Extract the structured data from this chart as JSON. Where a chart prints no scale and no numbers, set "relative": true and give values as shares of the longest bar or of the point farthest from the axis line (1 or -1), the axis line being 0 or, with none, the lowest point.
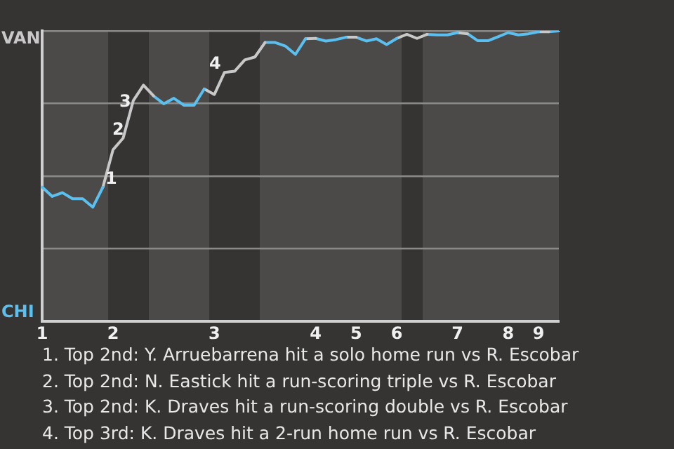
{
  "chart_data": {
    "type": "line",
    "relative": true,
    "categories": [
      "1",
      null,
      null,
      null,
      null,
      null,
      null,
      "2",
      null,
      null,
      null,
      null,
      null,
      null,
      null,
      null,
      null,
      "3",
      null,
      null,
      null,
      null,
      null,
      null,
      null,
      null,
      null,
      "4",
      null,
      null,
      null,
      "5",
      null,
      null,
      null,
      "6",
      null,
      null,
      null,
      null,
      null,
      "7",
      null,
      null,
      null,
      null,
      "8",
      null,
      null,
      "9",
      null,
      null
    ],
    "series": [
      {
        "color": "#5bc0f0",
        "values": [
          0.462,
          0.43,
          0.443,
          0.422,
          0.422,
          0.393,
          0.462,
          null,
          null,
          null,
          null,
          null,
          null,
          null,
          null,
          null,
          null,
          null,
          null,
          null,
          null,
          null,
          null,
          null,
          null,
          null,
          null,
          null,
          null,
          null,
          null,
          null,
          null,
          null,
          null,
          null,
          null,
          null,
          null,
          null,
          null,
          null,
          null,
          null,
          null,
          null,
          null,
          null,
          null,
          null,
          null,
          null
        ]
      },
      {
        "color": "#c8c8c8",
        "values": [
          null,
          null,
          null,
          null,
          null,
          null,
          0.462,
          0.591,
          0.631,
          0.76,
          0.813,
          0.776,
          null,
          null,
          null,
          null,
          null,
          null,
          null,
          null,
          null,
          null,
          null,
          null,
          null,
          null,
          null,
          null,
          null,
          null,
          null,
          null,
          null,
          null,
          null,
          null,
          null,
          null,
          null,
          null,
          null,
          null,
          null,
          null,
          null,
          null,
          null,
          null,
          null,
          null,
          null,
          null
        ]
      },
      {
        "color": "#5bc0f0",
        "values": [
          null,
          null,
          null,
          null,
          null,
          null,
          null,
          null,
          null,
          null,
          null,
          0.776,
          0.749,
          0.768,
          0.744,
          0.744,
          0.8,
          null,
          null,
          null,
          null,
          null,
          null,
          null,
          null,
          null,
          null,
          null,
          null,
          null,
          null,
          null,
          null,
          null,
          null,
          null,
          null,
          null,
          null,
          null,
          null,
          null,
          null,
          null,
          null,
          null,
          null,
          null,
          null,
          null,
          null,
          null
        ]
      },
      {
        "color": "#c8c8c8",
        "values": [
          null,
          null,
          null,
          null,
          null,
          null,
          null,
          null,
          null,
          null,
          null,
          null,
          null,
          null,
          null,
          null,
          0.8,
          0.781,
          0.857,
          0.861,
          0.9,
          0.91,
          0.96,
          null,
          null,
          null,
          null,
          null,
          null,
          null,
          null,
          null,
          null,
          null,
          null,
          null,
          null,
          null,
          null,
          null,
          null,
          null,
          null,
          null,
          null,
          null,
          null,
          null,
          null,
          null,
          null,
          null
        ]
      },
      {
        "color": "#5bc0f0",
        "values": [
          null,
          null,
          null,
          null,
          null,
          null,
          null,
          null,
          null,
          null,
          null,
          null,
          null,
          null,
          null,
          null,
          null,
          null,
          null,
          null,
          null,
          null,
          0.96,
          0.96,
          0.948,
          0.919,
          0.973,
          null,
          null,
          null,
          null,
          null,
          null,
          null,
          null,
          null,
          null,
          null,
          null,
          null,
          null,
          null,
          null,
          null,
          null,
          null,
          null,
          null,
          null,
          null,
          null,
          null
        ]
      },
      {
        "color": "#c8c8c8",
        "values": [
          null,
          null,
          null,
          null,
          null,
          null,
          null,
          null,
          null,
          null,
          null,
          null,
          null,
          null,
          null,
          null,
          null,
          null,
          null,
          null,
          null,
          null,
          null,
          null,
          null,
          null,
          0.973,
          0.974,
          null,
          null,
          null,
          null,
          null,
          null,
          null,
          null,
          null,
          null,
          null,
          null,
          null,
          null,
          null,
          null,
          null,
          null,
          null,
          null,
          null,
          null,
          null,
          null
        ]
      },
      {
        "color": "#5bc0f0",
        "values": [
          null,
          null,
          null,
          null,
          null,
          null,
          null,
          null,
          null,
          null,
          null,
          null,
          null,
          null,
          null,
          null,
          null,
          null,
          null,
          null,
          null,
          null,
          null,
          null,
          null,
          null,
          null,
          0.974,
          0.965,
          0.97,
          0.978,
          null,
          null,
          null,
          null,
          null,
          null,
          null,
          null,
          null,
          null,
          null,
          null,
          null,
          null,
          null,
          null,
          null,
          null,
          null,
          null,
          null
        ]
      },
      {
        "color": "#c8c8c8",
        "values": [
          null,
          null,
          null,
          null,
          null,
          null,
          null,
          null,
          null,
          null,
          null,
          null,
          null,
          null,
          null,
          null,
          null,
          null,
          null,
          null,
          null,
          null,
          null,
          null,
          null,
          null,
          null,
          null,
          null,
          null,
          0.978,
          0.978,
          null,
          null,
          null,
          null,
          null,
          null,
          null,
          null,
          null,
          null,
          null,
          null,
          null,
          null,
          null,
          null,
          null,
          null,
          null,
          null
        ]
      },
      {
        "color": "#5bc0f0",
        "values": [
          null,
          null,
          null,
          null,
          null,
          null,
          null,
          null,
          null,
          null,
          null,
          null,
          null,
          null,
          null,
          null,
          null,
          null,
          null,
          null,
          null,
          null,
          null,
          null,
          null,
          null,
          null,
          null,
          null,
          null,
          null,
          0.978,
          0.965,
          0.973,
          0.953,
          0.974,
          null,
          null,
          null,
          null,
          null,
          null,
          null,
          null,
          null,
          null,
          null,
          null,
          null,
          null,
          null,
          null
        ]
      },
      {
        "color": "#c8c8c8",
        "values": [
          null,
          null,
          null,
          null,
          null,
          null,
          null,
          null,
          null,
          null,
          null,
          null,
          null,
          null,
          null,
          null,
          null,
          null,
          null,
          null,
          null,
          null,
          null,
          null,
          null,
          null,
          null,
          null,
          null,
          null,
          null,
          null,
          null,
          null,
          null,
          0.974,
          0.988,
          0.974,
          0.988,
          null,
          null,
          null,
          null,
          null,
          null,
          null,
          null,
          null,
          null,
          null,
          null,
          null
        ]
      },
      {
        "color": "#5bc0f0",
        "values": [
          null,
          null,
          null,
          null,
          null,
          null,
          null,
          null,
          null,
          null,
          null,
          null,
          null,
          null,
          null,
          null,
          null,
          null,
          null,
          null,
          null,
          null,
          null,
          null,
          null,
          null,
          null,
          null,
          null,
          null,
          null,
          null,
          null,
          null,
          null,
          null,
          null,
          null,
          0.988,
          0.986,
          0.986,
          0.994,
          null,
          null,
          null,
          null,
          null,
          null,
          null,
          null,
          null,
          null
        ]
      },
      {
        "color": "#c8c8c8",
        "values": [
          null,
          null,
          null,
          null,
          null,
          null,
          null,
          null,
          null,
          null,
          null,
          null,
          null,
          null,
          null,
          null,
          null,
          null,
          null,
          null,
          null,
          null,
          null,
          null,
          null,
          null,
          null,
          null,
          null,
          null,
          null,
          null,
          null,
          null,
          null,
          null,
          null,
          null,
          null,
          null,
          null,
          0.994,
          0.99,
          null,
          null,
          null,
          null,
          null,
          null,
          null,
          null,
          null
        ]
      },
      {
        "color": "#5bc0f0",
        "values": [
          null,
          null,
          null,
          null,
          null,
          null,
          null,
          null,
          null,
          null,
          null,
          null,
          null,
          null,
          null,
          null,
          null,
          null,
          null,
          null,
          null,
          null,
          null,
          null,
          null,
          null,
          null,
          null,
          null,
          null,
          null,
          null,
          null,
          null,
          null,
          null,
          null,
          null,
          null,
          null,
          null,
          null,
          0.99,
          0.966,
          0.966,
          0.98,
          0.994,
          0.986,
          0.99,
          0.997,
          null,
          null
        ]
      },
      {
        "color": "#c8c8c8",
        "values": [
          null,
          null,
          null,
          null,
          null,
          null,
          null,
          null,
          null,
          null,
          null,
          null,
          null,
          null,
          null,
          null,
          null,
          null,
          null,
          null,
          null,
          null,
          null,
          null,
          null,
          null,
          null,
          null,
          null,
          null,
          null,
          null,
          null,
          null,
          null,
          null,
          null,
          null,
          null,
          null,
          null,
          null,
          null,
          null,
          null,
          null,
          null,
          null,
          null,
          0.997,
          0.997,
          null
        ]
      },
      {
        "color": "#5bc0f0",
        "values": [
          null,
          null,
          null,
          null,
          null,
          null,
          null,
          null,
          null,
          null,
          null,
          null,
          null,
          null,
          null,
          null,
          null,
          null,
          null,
          null,
          null,
          null,
          null,
          null,
          null,
          null,
          null,
          null,
          null,
          null,
          null,
          null,
          null,
          null,
          null,
          null,
          null,
          null,
          null,
          null,
          null,
          null,
          null,
          null,
          null,
          null,
          null,
          null,
          null,
          null,
          0.997,
          1
        ]
      }
    ],
    "grid": "y",
    "legend": false,
    "annotations": [
      "VAN",
      "CHI",
      "1",
      "2",
      "3",
      "4",
      "1. Top 2nd: Y. Arruebarrena hit a solo home run vs R. Escobar",
      "2. Top 2nd: N. Eastick hit a run-scoring triple vs R. Escobar",
      "3. Top 2nd: K. Draves hit a run-scoring double vs R. Escobar",
      "4. Top 3rd: K. Draves hit a 2-run home run vs R. Escobar"
    ]
  }
}
